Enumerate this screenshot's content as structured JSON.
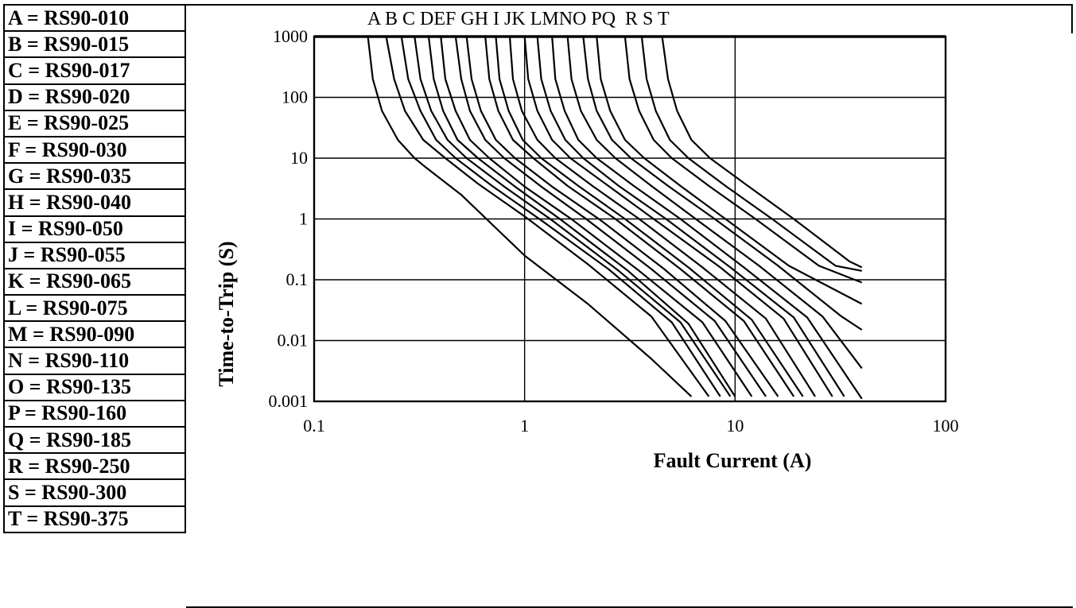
{
  "legend": [
    {
      "key": "A",
      "part": "RS90-010"
    },
    {
      "key": "B",
      "part": "RS90-015"
    },
    {
      "key": "C",
      "part": "RS90-017"
    },
    {
      "key": "D",
      "part": "RS90-020"
    },
    {
      "key": "E",
      "part": "RS90-025"
    },
    {
      "key": "F",
      "part": "RS90-030"
    },
    {
      "key": "G",
      "part": "RS90-035"
    },
    {
      "key": "H",
      "part": "RS90-040"
    },
    {
      "key": "I",
      "part": "RS90-050"
    },
    {
      "key": "J",
      "part": "RS90-055"
    },
    {
      "key": "K",
      "part": "RS90-065"
    },
    {
      "key": "L",
      "part": "RS90-075"
    },
    {
      "key": "M",
      "part": "RS90-090"
    },
    {
      "key": "N",
      "part": "RS90-110"
    },
    {
      "key": "O",
      "part": "RS90-135"
    },
    {
      "key": "P",
      "part": "RS90-160"
    },
    {
      "key": "Q",
      "part": "RS90-185"
    },
    {
      "key": "R",
      "part": "RS90-250"
    },
    {
      "key": "S",
      "part": "RS90-300"
    },
    {
      "key": "T",
      "part": "RS90-375"
    }
  ],
  "chart_data": {
    "type": "line",
    "title": "",
    "top_labels": "A B C DEF GH I JK LMNO PQ  R S T",
    "xlabel": "Fault Current (A)",
    "ylabel": "Time-to-Trip (S)",
    "x_scale": "log",
    "y_scale": "log",
    "xlim": [
      0.1,
      100
    ],
    "ylim": [
      0.001,
      1000
    ],
    "x_ticks": [
      "0.1",
      "1",
      "10",
      "100"
    ],
    "y_ticks": [
      "1000",
      "100",
      "10",
      "1",
      "0.1",
      "0.01",
      "0.001"
    ],
    "grid": true,
    "line_color": "#000000",
    "series": [
      {
        "name": "A",
        "x": [
          0.18,
          0.19,
          0.21,
          0.25,
          0.3,
          0.34,
          0.5,
          1,
          2,
          4,
          6.2
        ],
        "y": [
          1000,
          200,
          60,
          20,
          10,
          7,
          2.5,
          0.25,
          0.04,
          0.005,
          0.0012
        ]
      },
      {
        "name": "B",
        "x": [
          0.22,
          0.24,
          0.27,
          0.33,
          0.42,
          0.6,
          1,
          2,
          4,
          7.5
        ],
        "y": [
          1000,
          200,
          60,
          20,
          10,
          3.8,
          1.1,
          0.18,
          0.025,
          0.0012
        ]
      },
      {
        "name": "C",
        "x": [
          0.26,
          0.28,
          0.32,
          0.38,
          0.47,
          0.7,
          1.2,
          2.5,
          5,
          8.5
        ],
        "y": [
          1000,
          200,
          60,
          20,
          10,
          3.5,
          0.95,
          0.15,
          0.02,
          0.0012
        ]
      },
      {
        "name": "D",
        "x": [
          0.3,
          0.32,
          0.36,
          0.43,
          0.53,
          0.8,
          1.35,
          2.8,
          5.5,
          9.5
        ],
        "y": [
          1000,
          200,
          60,
          20,
          10,
          3.4,
          0.95,
          0.14,
          0.02,
          0.0012
        ]
      },
      {
        "name": "E",
        "x": [
          0.35,
          0.37,
          0.41,
          0.48,
          0.6,
          0.9,
          1.5,
          3.1,
          6,
          10
        ],
        "y": [
          1000,
          200,
          60,
          20,
          10,
          3.4,
          0.95,
          0.14,
          0.019,
          0.0012
        ]
      },
      {
        "name": "F",
        "x": [
          0.4,
          0.42,
          0.47,
          0.55,
          0.68,
          1,
          1.7,
          3.5,
          7,
          12
        ],
        "y": [
          1000,
          200,
          60,
          20,
          10,
          3.4,
          0.95,
          0.14,
          0.02,
          0.0012
        ]
      },
      {
        "name": "G",
        "x": [
          0.47,
          0.5,
          0.55,
          0.65,
          0.8,
          1.2,
          2,
          4,
          8,
          14
        ],
        "y": [
          1000,
          200,
          60,
          20,
          10,
          3.4,
          0.95,
          0.15,
          0.021,
          0.0012
        ]
      },
      {
        "name": "H",
        "x": [
          0.53,
          0.56,
          0.62,
          0.73,
          0.9,
          1.35,
          2.3,
          4.6,
          9,
          16
        ],
        "y": [
          1000,
          200,
          60,
          20,
          10,
          3.4,
          0.95,
          0.15,
          0.021,
          0.0012
        ]
      },
      {
        "name": "I",
        "x": [
          0.65,
          0.68,
          0.75,
          0.88,
          1.1,
          1.6,
          2.7,
          5.5,
          11,
          19
        ],
        "y": [
          1000,
          200,
          60,
          20,
          10,
          3.5,
          1,
          0.15,
          0.021,
          0.0012
        ]
      },
      {
        "name": "J",
        "x": [
          0.73,
          0.76,
          0.84,
          0.98,
          1.2,
          1.8,
          3,
          6,
          12,
          21
        ],
        "y": [
          1000,
          200,
          60,
          20,
          10,
          3.5,
          1,
          0.16,
          0.022,
          0.0012
        ]
      },
      {
        "name": "K",
        "x": [
          0.85,
          0.88,
          0.97,
          1.15,
          1.4,
          2.1,
          3.5,
          7,
          14,
          24
        ],
        "y": [
          1000,
          200,
          60,
          20,
          10,
          3.5,
          1,
          0.16,
          0.023,
          0.0012
        ]
      },
      {
        "name": "L",
        "x": [
          1.0,
          1.04,
          1.15,
          1.35,
          1.65,
          2.5,
          4.1,
          8.5,
          17,
          29
        ],
        "y": [
          1000,
          200,
          60,
          20,
          10,
          3.5,
          1,
          0.16,
          0.023,
          0.0012
        ]
      },
      {
        "name": "M",
        "x": [
          1.15,
          1.2,
          1.33,
          1.56,
          1.9,
          2.8,
          4.7,
          9.5,
          19,
          33
        ],
        "y": [
          1000,
          200,
          60,
          20,
          10,
          3.5,
          1,
          0.16,
          0.024,
          0.0012
        ]
      },
      {
        "name": "N",
        "x": [
          1.35,
          1.4,
          1.55,
          1.8,
          2.2,
          3.3,
          5.5,
          11,
          22,
          40
        ],
        "y": [
          1000,
          200,
          60,
          20,
          10,
          3.5,
          1,
          0.16,
          0.024,
          0.0011
        ]
      },
      {
        "name": "O",
        "x": [
          1.6,
          1.67,
          1.85,
          2.2,
          2.7,
          4,
          6.5,
          13,
          26,
          40
        ],
        "y": [
          1000,
          200,
          60,
          20,
          10,
          3.5,
          1,
          0.17,
          0.025,
          0.0035
        ]
      },
      {
        "name": "P",
        "x": [
          1.9,
          2,
          2.2,
          2.6,
          3.2,
          4.8,
          8,
          16,
          32,
          40
        ],
        "y": [
          1000,
          200,
          60,
          20,
          10,
          3.5,
          1,
          0.17,
          0.025,
          0.015
        ]
      },
      {
        "name": "Q",
        "x": [
          2.2,
          2.3,
          2.55,
          3,
          3.7,
          5.5,
          9,
          18,
          40
        ],
        "y": [
          1000,
          200,
          60,
          20,
          10,
          3.5,
          1,
          0.17,
          0.04
        ]
      },
      {
        "name": "R",
        "x": [
          3,
          3.15,
          3.5,
          4.1,
          5,
          7.5,
          12.5,
          25,
          40
        ],
        "y": [
          1000,
          200,
          60,
          20,
          10,
          3.5,
          1,
          0.17,
          0.09
        ]
      },
      {
        "name": "S",
        "x": [
          3.6,
          3.8,
          4.2,
          4.9,
          6,
          9,
          15,
          30,
          40
        ],
        "y": [
          1000,
          200,
          60,
          20,
          10,
          3.5,
          1,
          0.17,
          0.14
        ]
      },
      {
        "name": "T",
        "x": [
          4.5,
          4.8,
          5.3,
          6.2,
          7.6,
          11.5,
          19,
          35,
          40
        ],
        "y": [
          1000,
          200,
          60,
          20,
          10,
          3.5,
          1,
          0.2,
          0.16
        ]
      }
    ]
  }
}
